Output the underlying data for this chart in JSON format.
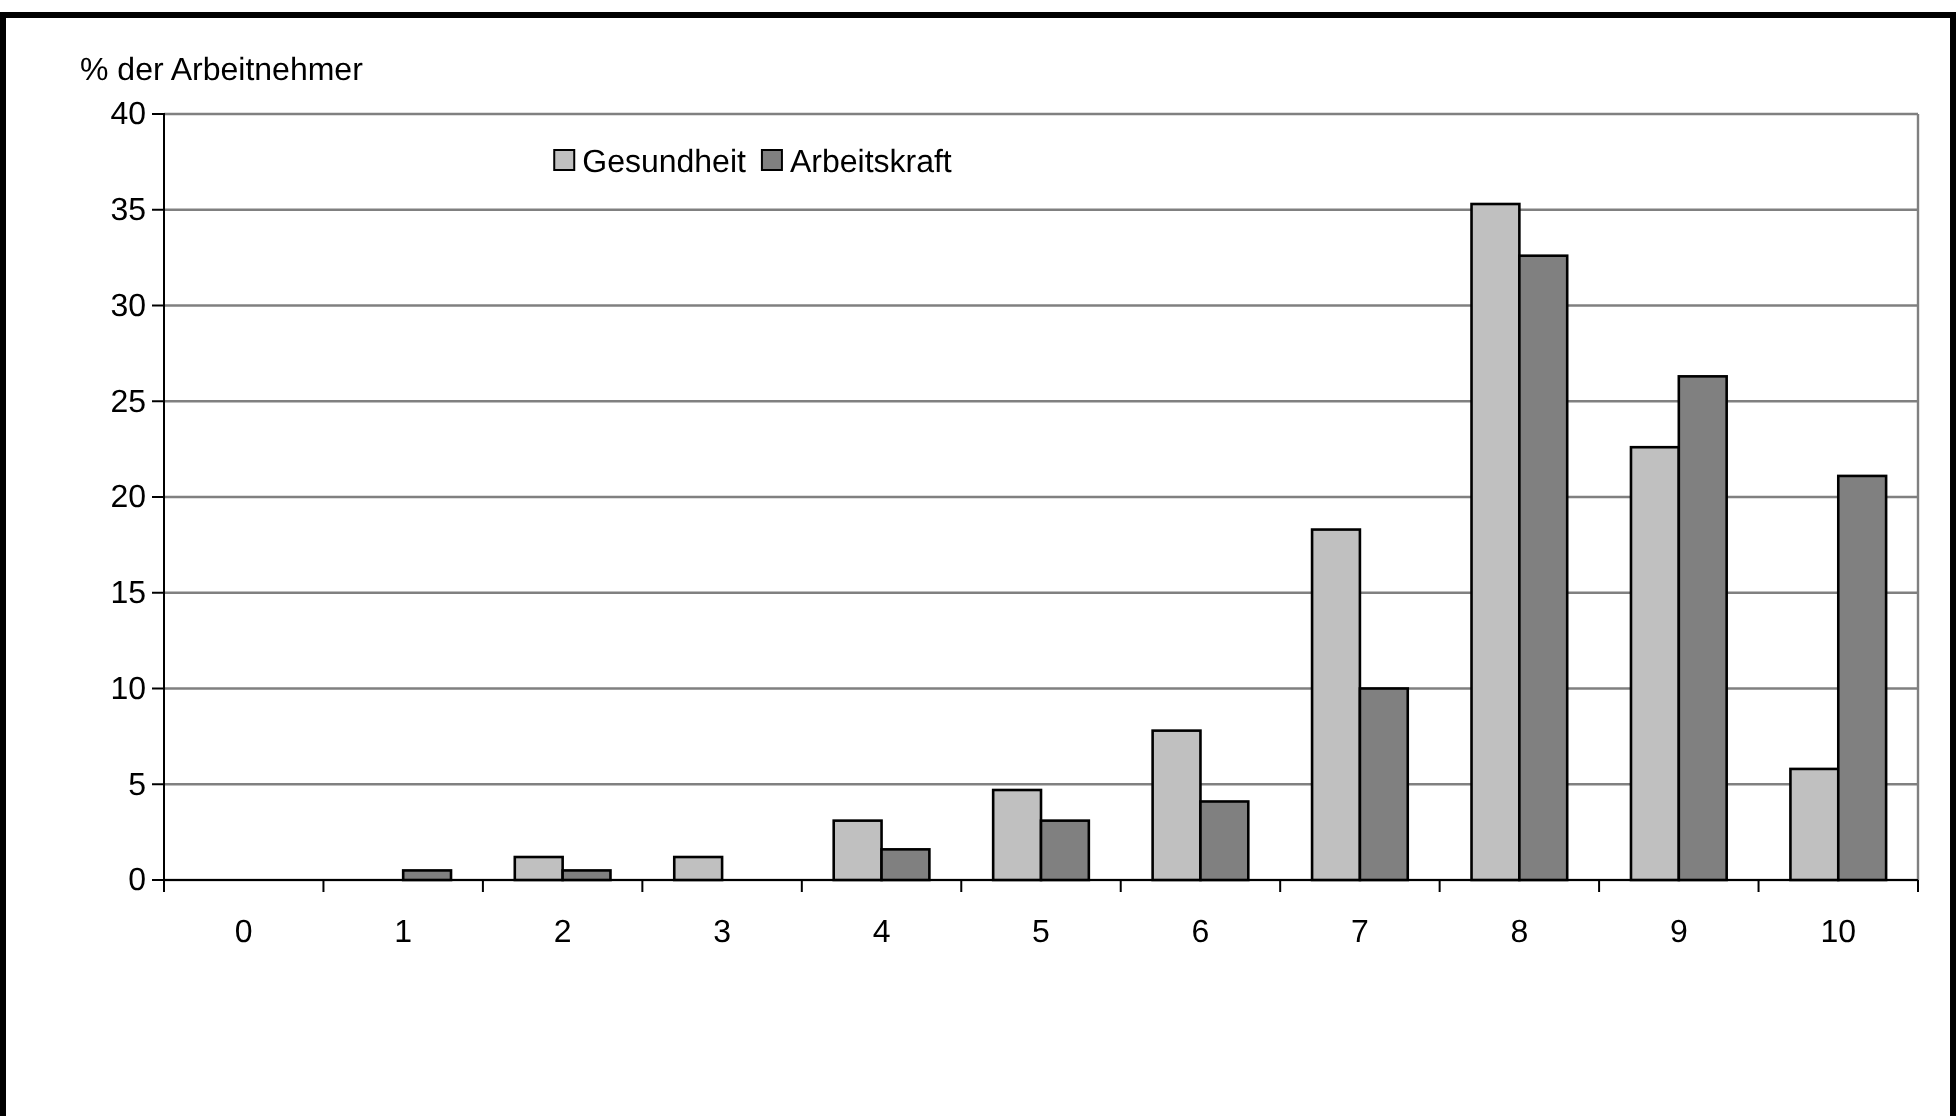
{
  "chart_data": {
    "type": "bar",
    "ylabel": "% der Arbeitnehmer",
    "categories": [
      "0",
      "1",
      "2",
      "3",
      "4",
      "5",
      "6",
      "7",
      "8",
      "9",
      "10"
    ],
    "series": [
      {
        "name": "Gesundheit",
        "color": "#c0c0c0",
        "values": [
          0,
          0,
          1.2,
          1.2,
          3.1,
          4.7,
          7.8,
          18.3,
          35.3,
          22.6,
          5.8
        ]
      },
      {
        "name": "Arbeitskraft",
        "color": "#808080",
        "values": [
          0,
          0.5,
          0.5,
          0,
          1.6,
          3.1,
          4.1,
          10,
          32.6,
          26.3,
          21.1
        ]
      }
    ],
    "ylim": [
      0,
      40
    ],
    "yticks": [
      0,
      5,
      10,
      15,
      20,
      25,
      30,
      35,
      40
    ],
    "grid": "y",
    "legend": "top"
  }
}
